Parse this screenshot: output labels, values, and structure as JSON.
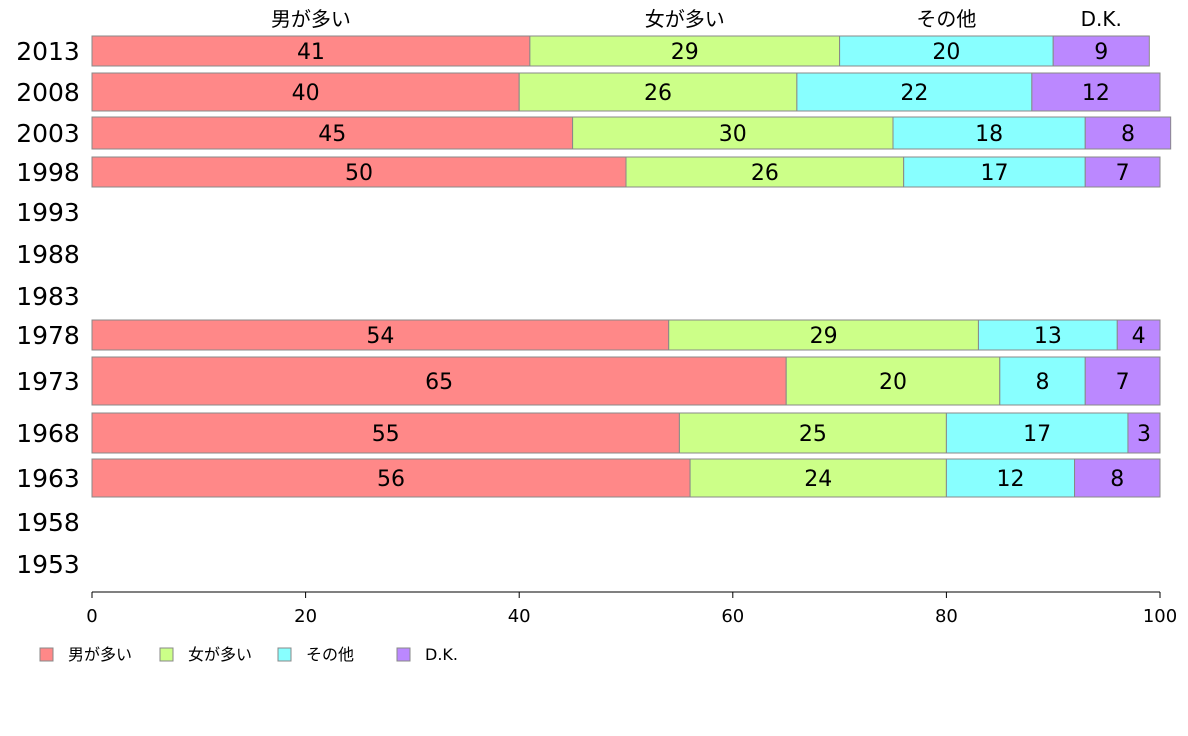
{
  "chart_data": {
    "type": "bar",
    "orientation": "horizontal",
    "stacked": true,
    "categories": [
      "2013",
      "2008",
      "2003",
      "1998",
      "1993",
      "1988",
      "1983",
      "1978",
      "1973",
      "1968",
      "1963",
      "1958",
      "1953"
    ],
    "series": [
      {
        "name": "男が多い",
        "color": "#ff8888",
        "values": [
          41,
          40,
          45,
          50,
          null,
          null,
          null,
          54,
          65,
          55,
          56,
          null,
          null
        ]
      },
      {
        "name": "女が多い",
        "color": "#ccff88",
        "values": [
          29,
          26,
          30,
          26,
          null,
          null,
          null,
          29,
          20,
          25,
          24,
          null,
          null
        ]
      },
      {
        "name": "その他",
        "color": "#88ffff",
        "values": [
          20,
          22,
          18,
          17,
          null,
          null,
          null,
          13,
          8,
          17,
          12,
          null,
          null
        ]
      },
      {
        "name": "D.K.",
        "color": "#bb88ff",
        "values": [
          9,
          12,
          8,
          7,
          null,
          null,
          null,
          4,
          7,
          3,
          8,
          null,
          null
        ]
      }
    ],
    "xlim": [
      0,
      100
    ],
    "xticks": [
      "0",
      "20",
      "40",
      "60",
      "80",
      "100"
    ],
    "top_labels": [
      "男が多い",
      "女が多い",
      "その他",
      "D.K."
    ],
    "legend": {
      "position": "bottom-left",
      "items": [
        "男が多い",
        "女が多い",
        "その他",
        "D.K."
      ]
    },
    "grid": false
  }
}
